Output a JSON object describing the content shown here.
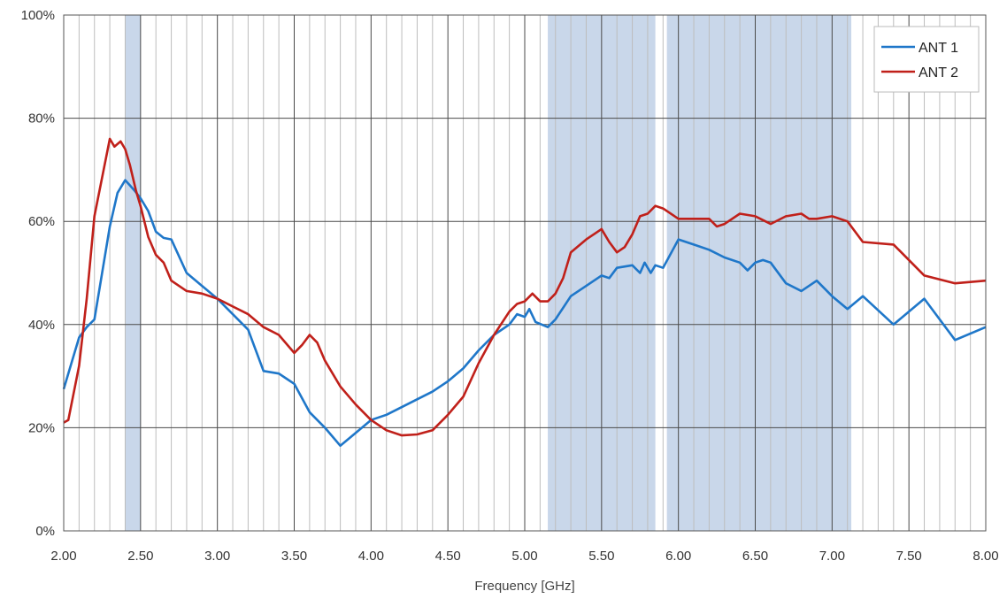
{
  "chart_data": {
    "type": "line",
    "title": "",
    "xlabel": "Frequency [GHz]",
    "ylabel": "",
    "xlim": [
      2.0,
      8.0
    ],
    "ylim": [
      0,
      100
    ],
    "x_ticks": [
      2.0,
      2.5,
      3.0,
      3.5,
      4.0,
      4.5,
      5.0,
      5.5,
      6.0,
      6.5,
      7.0,
      7.5,
      8.0
    ],
    "x_tick_labels": [
      "2.00",
      "2.50",
      "3.00",
      "3.50",
      "4.00",
      "4.50",
      "5.00",
      "5.50",
      "6.00",
      "6.50",
      "7.00",
      "7.50",
      "8.00"
    ],
    "y_ticks": [
      0,
      20,
      40,
      60,
      80,
      100
    ],
    "y_tick_labels": [
      "0%",
      "20%",
      "40%",
      "60%",
      "80%",
      "100%"
    ],
    "x_minor_step": 0.1,
    "grid": true,
    "legend_position": "top-right",
    "shaded_bands": [
      {
        "from": 2.4,
        "to": 2.5,
        "color": "#c9d7ea"
      },
      {
        "from": 5.15,
        "to": 5.85,
        "color": "#c9d7ea"
      },
      {
        "from": 5.925,
        "to": 7.125,
        "color": "#c9d7ea"
      }
    ],
    "series": [
      {
        "name": "ANT 1",
        "color": "#1f77c9",
        "points": [
          [
            2.0,
            27.5
          ],
          [
            2.05,
            32.5
          ],
          [
            2.1,
            37.5
          ],
          [
            2.15,
            39.5
          ],
          [
            2.2,
            41.0
          ],
          [
            2.25,
            50.0
          ],
          [
            2.3,
            59.0
          ],
          [
            2.35,
            65.5
          ],
          [
            2.4,
            68.0
          ],
          [
            2.43,
            67.0
          ],
          [
            2.46,
            66.0
          ],
          [
            2.5,
            64.5
          ],
          [
            2.55,
            62.0
          ],
          [
            2.6,
            58.0
          ],
          [
            2.65,
            56.8
          ],
          [
            2.7,
            56.5
          ],
          [
            2.8,
            50.0
          ],
          [
            2.9,
            47.5
          ],
          [
            3.0,
            45.0
          ],
          [
            3.1,
            42.0
          ],
          [
            3.2,
            39.0
          ],
          [
            3.3,
            31.0
          ],
          [
            3.4,
            30.5
          ],
          [
            3.45,
            29.5
          ],
          [
            3.5,
            28.5
          ],
          [
            3.6,
            23.0
          ],
          [
            3.7,
            20.0
          ],
          [
            3.8,
            16.5
          ],
          [
            3.9,
            19.0
          ],
          [
            4.0,
            21.5
          ],
          [
            4.1,
            22.5
          ],
          [
            4.2,
            24.0
          ],
          [
            4.3,
            25.5
          ],
          [
            4.4,
            27.0
          ],
          [
            4.5,
            29.0
          ],
          [
            4.6,
            31.5
          ],
          [
            4.7,
            35.0
          ],
          [
            4.8,
            38.0
          ],
          [
            4.9,
            40.0
          ],
          [
            4.95,
            42.0
          ],
          [
            5.0,
            41.5
          ],
          [
            5.03,
            43.0
          ],
          [
            5.07,
            40.5
          ],
          [
            5.15,
            39.5
          ],
          [
            5.2,
            41.0
          ],
          [
            5.3,
            45.5
          ],
          [
            5.4,
            47.5
          ],
          [
            5.5,
            49.5
          ],
          [
            5.55,
            49.0
          ],
          [
            5.6,
            51.0
          ],
          [
            5.7,
            51.5
          ],
          [
            5.75,
            50.0
          ],
          [
            5.78,
            52.0
          ],
          [
            5.82,
            50.0
          ],
          [
            5.85,
            51.5
          ],
          [
            5.9,
            51.0
          ],
          [
            6.0,
            56.5
          ],
          [
            6.1,
            55.5
          ],
          [
            6.2,
            54.5
          ],
          [
            6.3,
            53.0
          ],
          [
            6.4,
            52.0
          ],
          [
            6.45,
            50.5
          ],
          [
            6.5,
            52.0
          ],
          [
            6.55,
            52.5
          ],
          [
            6.6,
            52.0
          ],
          [
            6.7,
            48.0
          ],
          [
            6.8,
            46.5
          ],
          [
            6.9,
            48.5
          ],
          [
            7.0,
            45.5
          ],
          [
            7.1,
            43.0
          ],
          [
            7.2,
            45.5
          ],
          [
            7.4,
            40.0
          ],
          [
            7.6,
            45.0
          ],
          [
            7.8,
            37.0
          ],
          [
            8.0,
            39.5
          ]
        ]
      },
      {
        "name": "ANT 2",
        "color": "#c0201a",
        "points": [
          [
            2.0,
            21.0
          ],
          [
            2.03,
            21.5
          ],
          [
            2.1,
            32.0
          ],
          [
            2.15,
            45.0
          ],
          [
            2.2,
            61.0
          ],
          [
            2.25,
            68.5
          ],
          [
            2.3,
            76.0
          ],
          [
            2.33,
            74.5
          ],
          [
            2.37,
            75.5
          ],
          [
            2.4,
            74.0
          ],
          [
            2.43,
            71.0
          ],
          [
            2.47,
            66.0
          ],
          [
            2.5,
            63.0
          ],
          [
            2.55,
            57.0
          ],
          [
            2.6,
            53.5
          ],
          [
            2.65,
            52.0
          ],
          [
            2.7,
            48.5
          ],
          [
            2.8,
            46.5
          ],
          [
            2.9,
            46.0
          ],
          [
            3.0,
            45.0
          ],
          [
            3.1,
            43.5
          ],
          [
            3.2,
            42.0
          ],
          [
            3.3,
            39.5
          ],
          [
            3.4,
            38.0
          ],
          [
            3.5,
            34.5
          ],
          [
            3.55,
            36.0
          ],
          [
            3.6,
            38.0
          ],
          [
            3.65,
            36.5
          ],
          [
            3.7,
            33.0
          ],
          [
            3.8,
            28.0
          ],
          [
            3.9,
            24.5
          ],
          [
            4.0,
            21.5
          ],
          [
            4.1,
            19.5
          ],
          [
            4.2,
            18.5
          ],
          [
            4.3,
            18.7
          ],
          [
            4.4,
            19.5
          ],
          [
            4.5,
            22.5
          ],
          [
            4.6,
            26.0
          ],
          [
            4.7,
            32.5
          ],
          [
            4.8,
            38.0
          ],
          [
            4.9,
            42.5
          ],
          [
            4.95,
            44.0
          ],
          [
            5.0,
            44.5
          ],
          [
            5.05,
            46.0
          ],
          [
            5.1,
            44.5
          ],
          [
            5.15,
            44.5
          ],
          [
            5.2,
            46.0
          ],
          [
            5.25,
            49.0
          ],
          [
            5.3,
            54.0
          ],
          [
            5.4,
            56.5
          ],
          [
            5.5,
            58.5
          ],
          [
            5.55,
            56.0
          ],
          [
            5.6,
            54.0
          ],
          [
            5.65,
            55.0
          ],
          [
            5.7,
            57.5
          ],
          [
            5.75,
            61.0
          ],
          [
            5.8,
            61.5
          ],
          [
            5.85,
            63.0
          ],
          [
            5.9,
            62.5
          ],
          [
            6.0,
            60.5
          ],
          [
            6.1,
            60.5
          ],
          [
            6.2,
            60.5
          ],
          [
            6.25,
            59.0
          ],
          [
            6.3,
            59.5
          ],
          [
            6.4,
            61.5
          ],
          [
            6.5,
            61.0
          ],
          [
            6.6,
            59.5
          ],
          [
            6.7,
            61.0
          ],
          [
            6.8,
            61.5
          ],
          [
            6.85,
            60.5
          ],
          [
            6.9,
            60.5
          ],
          [
            7.0,
            61.0
          ],
          [
            7.1,
            60.0
          ],
          [
            7.2,
            56.0
          ],
          [
            7.4,
            55.5
          ],
          [
            7.6,
            49.5
          ],
          [
            7.8,
            48.0
          ],
          [
            8.0,
            48.5
          ]
        ]
      }
    ]
  }
}
